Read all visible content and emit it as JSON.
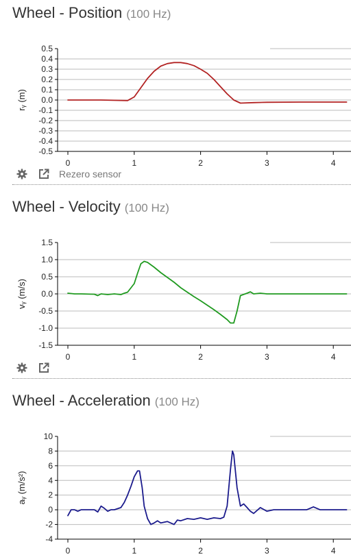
{
  "panels": [
    {
      "title": "Wheel - Position",
      "rate": "(100 Hz)",
      "y_label": "rᵧ (m)",
      "rezero_label": "Rezero sensor"
    },
    {
      "title": "Wheel - Velocity",
      "rate": "(100 Hz)",
      "y_label": "vᵧ (m/s)"
    },
    {
      "title": "Wheel - Acceleration",
      "rate": "(100 Hz)",
      "y_label": "aᵧ (m/s²)"
    }
  ],
  "icons": [
    "gear-icon",
    "external-link-icon"
  ],
  "chart_data": [
    {
      "type": "line",
      "ylabel": "rᵧ (m)",
      "xlim": [
        0,
        4.2
      ],
      "ylim": [
        -0.5,
        0.5
      ],
      "x_ticks": [
        0,
        1,
        2,
        3,
        4
      ],
      "y_ticks": [
        0.5,
        0.4,
        0.3,
        0.2,
        0.1,
        0.0,
        -0.1,
        -0.2,
        -0.3,
        -0.4,
        -0.5
      ],
      "y_tick_labels": [
        "0.5",
        "0.4",
        "0.3",
        "0.2",
        "0.1",
        "0.0",
        "-0.1",
        "-0.2",
        "-0.3",
        "-0.4",
        "-0.5"
      ],
      "grid": "horizontal",
      "color": "#b22222",
      "x": [
        0,
        0.5,
        0.9,
        1.0,
        1.1,
        1.2,
        1.3,
        1.4,
        1.5,
        1.6,
        1.7,
        1.8,
        1.9,
        2.0,
        2.1,
        2.2,
        2.3,
        2.4,
        2.5,
        2.6,
        2.8,
        3.0,
        3.5,
        4.0,
        4.2
      ],
      "y": [
        0.0,
        0.0,
        -0.005,
        0.03,
        0.12,
        0.21,
        0.28,
        0.33,
        0.355,
        0.365,
        0.365,
        0.355,
        0.335,
        0.3,
        0.26,
        0.2,
        0.13,
        0.06,
        0.0,
        -0.03,
        -0.025,
        -0.022,
        -0.02,
        -0.02,
        -0.02
      ]
    },
    {
      "type": "line",
      "ylabel": "vᵧ (m/s)",
      "xlim": [
        0,
        4.2
      ],
      "ylim": [
        -1.5,
        1.5
      ],
      "x_ticks": [
        0,
        1,
        2,
        3,
        4
      ],
      "y_ticks": [
        1.5,
        1.0,
        0.5,
        0.0,
        -0.5,
        -1.0,
        -1.5
      ],
      "y_tick_labels": [
        "1.5",
        "1.0",
        "0.5",
        "0.0",
        "-0.5",
        "-1.0",
        "-1.5"
      ],
      "grid": "horizontal",
      "color": "#1f9a1f",
      "x": [
        0,
        0.1,
        0.2,
        0.4,
        0.45,
        0.5,
        0.6,
        0.7,
        0.8,
        0.85,
        0.9,
        1.0,
        1.05,
        1.1,
        1.15,
        1.2,
        1.25,
        1.3,
        1.4,
        1.5,
        1.6,
        1.7,
        1.8,
        1.9,
        2.0,
        2.1,
        2.2,
        2.3,
        2.4,
        2.45,
        2.5,
        2.55,
        2.6,
        2.7,
        2.75,
        2.8,
        2.9,
        3.0,
        3.5,
        3.8,
        4.0,
        4.2
      ],
      "y": [
        0.02,
        0.0,
        0.0,
        -0.01,
        -0.05,
        0.0,
        -0.02,
        0.0,
        -0.02,
        0.02,
        0.05,
        0.3,
        0.6,
        0.88,
        0.95,
        0.92,
        0.85,
        0.78,
        0.62,
        0.48,
        0.34,
        0.18,
        0.05,
        -0.08,
        -0.2,
        -0.33,
        -0.46,
        -0.6,
        -0.75,
        -0.85,
        -0.85,
        -0.5,
        -0.05,
        0.02,
        0.06,
        0.0,
        0.02,
        0.0,
        0.0,
        0.0,
        0.0,
        0.0
      ]
    },
    {
      "type": "line",
      "ylabel": "aᵧ (m/s²)",
      "xlim": [
        0,
        4.2
      ],
      "ylim": [
        -4,
        10
      ],
      "x_ticks": [
        0,
        1,
        2,
        3,
        4
      ],
      "y_ticks": [
        10,
        8,
        6,
        4,
        2,
        0,
        -2,
        -4
      ],
      "y_tick_labels": [
        "10",
        "8",
        "6",
        "4",
        "2",
        "0",
        "-2",
        "-4"
      ],
      "grid": "horizontal",
      "color": "#1a1a8c",
      "x": [
        0,
        0.05,
        0.1,
        0.15,
        0.2,
        0.3,
        0.4,
        0.45,
        0.5,
        0.55,
        0.6,
        0.65,
        0.7,
        0.8,
        0.85,
        0.9,
        0.95,
        1.0,
        1.05,
        1.08,
        1.12,
        1.15,
        1.2,
        1.25,
        1.3,
        1.35,
        1.4,
        1.5,
        1.6,
        1.65,
        1.7,
        1.8,
        1.9,
        2.0,
        2.1,
        2.2,
        2.3,
        2.35,
        2.4,
        2.45,
        2.48,
        2.5,
        2.55,
        2.6,
        2.65,
        2.7,
        2.75,
        2.8,
        2.9,
        3.0,
        3.1,
        3.5,
        3.6,
        3.7,
        3.8,
        4.0,
        4.2
      ],
      "y": [
        -0.8,
        0.0,
        0.0,
        -0.2,
        0.0,
        0.0,
        0.0,
        -0.3,
        0.5,
        0.2,
        -0.2,
        0.0,
        0.0,
        0.3,
        1.0,
        2.0,
        3.2,
        4.5,
        5.3,
        5.3,
        3.0,
        0.5,
        -1.2,
        -2.0,
        -1.8,
        -1.5,
        -1.8,
        -1.6,
        -2.0,
        -1.4,
        -1.5,
        -1.2,
        -1.3,
        -1.1,
        -1.3,
        -1.1,
        -1.2,
        -1.0,
        0.5,
        5.5,
        8.0,
        7.5,
        3.0,
        0.5,
        0.8,
        0.3,
        -0.2,
        -0.5,
        0.3,
        -0.2,
        0.0,
        0.0,
        0.0,
        0.4,
        0.0,
        0.0,
        0.0
      ]
    }
  ]
}
